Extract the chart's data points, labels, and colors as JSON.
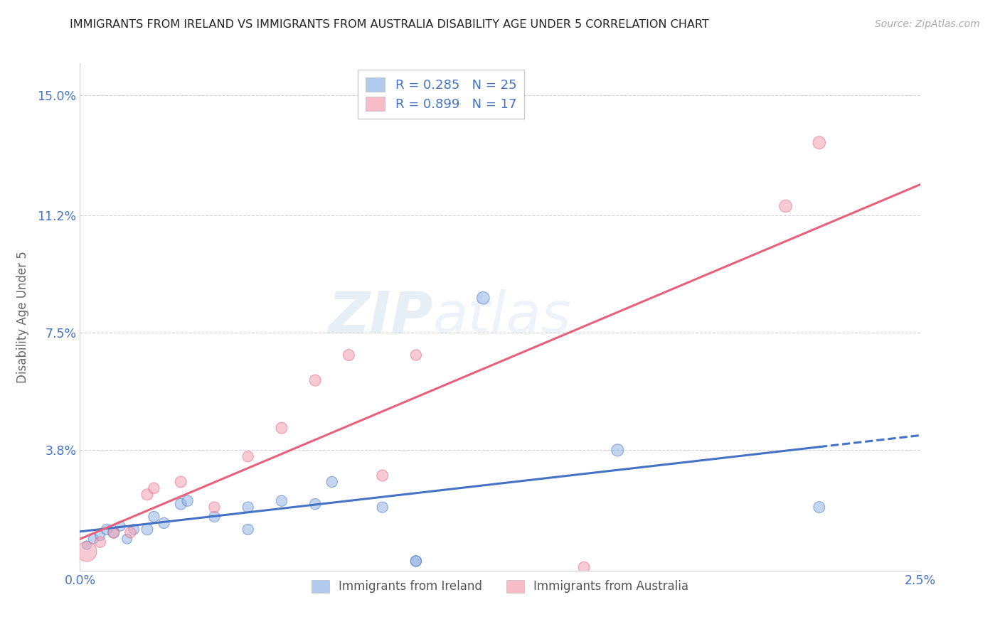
{
  "title": "IMMIGRANTS FROM IRELAND VS IMMIGRANTS FROM AUSTRALIA DISABILITY AGE UNDER 5 CORRELATION CHART",
  "source": "Source: ZipAtlas.com",
  "ylabel": "Disability Age Under 5",
  "watermark": "ZIPatlas",
  "xmin": 0.0,
  "xmax": 0.025,
  "ymin": 0.0,
  "ymax": 0.16,
  "yticks": [
    0.0,
    0.038,
    0.075,
    0.112,
    0.15
  ],
  "ytick_labels": [
    "",
    "3.8%",
    "7.5%",
    "11.2%",
    "15.0%"
  ],
  "xticks": [
    0.0,
    0.005,
    0.01,
    0.015,
    0.02,
    0.025
  ],
  "xtick_labels": [
    "0.0%",
    "",
    "",
    "",
    "",
    "2.5%"
  ],
  "ireland_color": "#92b4e3",
  "australia_color": "#f4a0b0",
  "ireland_R": 0.285,
  "ireland_N": 25,
  "australia_R": 0.899,
  "australia_N": 17,
  "ireland_points_x": [
    0.0002,
    0.0004,
    0.0006,
    0.0008,
    0.001,
    0.0012,
    0.0014,
    0.0016,
    0.002,
    0.0022,
    0.0025,
    0.003,
    0.0032,
    0.004,
    0.005,
    0.005,
    0.006,
    0.007,
    0.0075,
    0.009,
    0.01,
    0.01,
    0.012,
    0.016,
    0.022
  ],
  "ireland_points_y": [
    0.008,
    0.01,
    0.011,
    0.013,
    0.012,
    0.014,
    0.01,
    0.013,
    0.013,
    0.017,
    0.015,
    0.021,
    0.022,
    0.017,
    0.013,
    0.02,
    0.022,
    0.021,
    0.028,
    0.02,
    0.003,
    0.003,
    0.086,
    0.038,
    0.02
  ],
  "ireland_sizes": [
    80,
    100,
    100,
    120,
    130,
    100,
    100,
    110,
    130,
    120,
    120,
    130,
    120,
    120,
    120,
    120,
    120,
    120,
    120,
    120,
    120,
    120,
    160,
    150,
    130
  ],
  "australia_points_x": [
    0.0002,
    0.0006,
    0.001,
    0.0015,
    0.002,
    0.0022,
    0.003,
    0.004,
    0.005,
    0.006,
    0.007,
    0.008,
    0.009,
    0.01,
    0.015,
    0.021,
    0.022
  ],
  "australia_points_y": [
    0.006,
    0.009,
    0.012,
    0.012,
    0.024,
    0.026,
    0.028,
    0.02,
    0.036,
    0.045,
    0.06,
    0.068,
    0.03,
    0.068,
    0.001,
    0.115,
    0.135
  ],
  "australia_sizes": [
    400,
    120,
    120,
    120,
    130,
    120,
    130,
    120,
    120,
    130,
    130,
    130,
    130,
    120,
    130,
    160,
    160
  ],
  "ireland_line_color": "#4472c4",
  "australia_line_color": "#e8607a",
  "ireland_line_style": "--",
  "australia_line_style": "-",
  "grid_color": "#d3d3d3",
  "bg_color": "#ffffff",
  "title_color": "#222222",
  "axis_label_color": "#4472c4",
  "ylabel_color": "#666666",
  "legend_color_blue": "#92b4e3",
  "legend_color_pink": "#f4a0b0",
  "bottom_legend_ireland": "Immigrants from Ireland",
  "bottom_legend_australia": "Immigrants from Australia"
}
